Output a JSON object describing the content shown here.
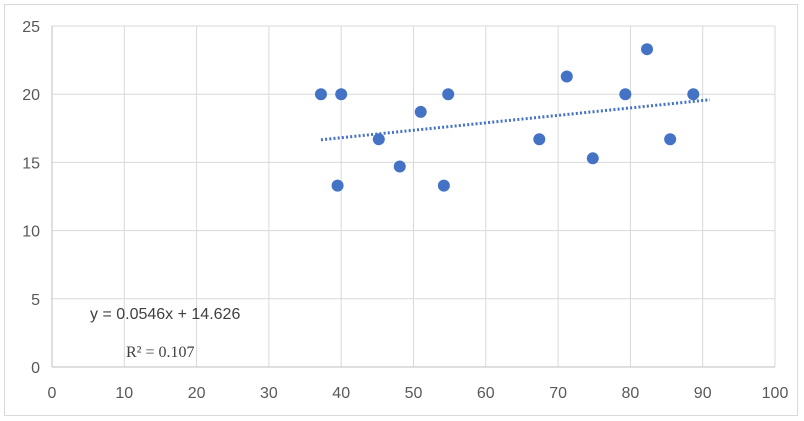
{
  "chart_data": {
    "type": "scatter",
    "title": "",
    "xlabel": "",
    "ylabel": "",
    "xlim": [
      0,
      100
    ],
    "ylim": [
      0,
      25
    ],
    "xticks": [
      0,
      10,
      20,
      30,
      40,
      50,
      60,
      70,
      80,
      90,
      100
    ],
    "yticks": [
      0,
      5,
      10,
      15,
      20,
      25
    ],
    "grid": true,
    "legend": "none",
    "series": [
      {
        "color": "#4472c4",
        "points": [
          {
            "x": 37.2,
            "y": 20.0
          },
          {
            "x": 39.5,
            "y": 13.3
          },
          {
            "x": 40.0,
            "y": 20.0
          },
          {
            "x": 45.2,
            "y": 16.7
          },
          {
            "x": 48.1,
            "y": 14.7
          },
          {
            "x": 51.0,
            "y": 18.7
          },
          {
            "x": 54.2,
            "y": 13.3
          },
          {
            "x": 54.8,
            "y": 20.0
          },
          {
            "x": 67.4,
            "y": 16.7
          },
          {
            "x": 71.2,
            "y": 21.3
          },
          {
            "x": 74.8,
            "y": 15.3
          },
          {
            "x": 79.3,
            "y": 20.0
          },
          {
            "x": 82.3,
            "y": 23.3
          },
          {
            "x": 85.5,
            "y": 16.7
          },
          {
            "x": 88.7,
            "y": 20.0
          }
        ]
      }
    ],
    "trendline": {
      "type": "linear",
      "slope": 0.0546,
      "intercept": 14.626,
      "x_range": [
        37.2,
        91
      ],
      "color": "#4472c4",
      "style": "dotted",
      "equation_label": "y = 0.0546x + 14.626",
      "r2_label": "R² = 0.107"
    }
  }
}
